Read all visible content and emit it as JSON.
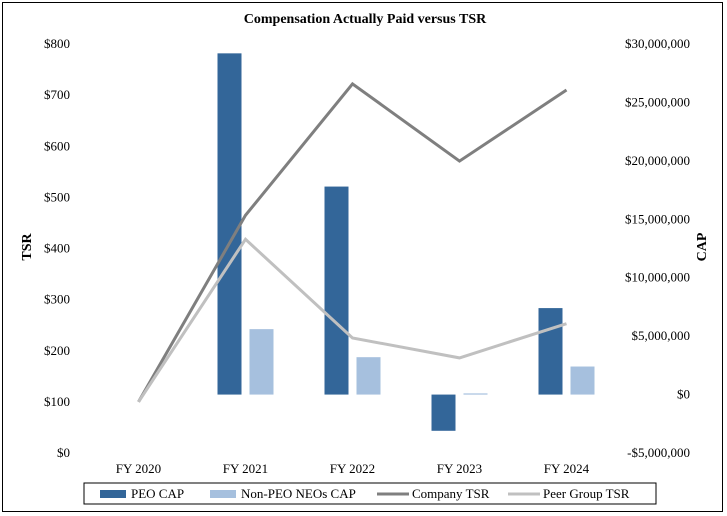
{
  "chart_data": {
    "type": "bar+line",
    "title": "Compensation Actually Paid versus TSR",
    "categories": [
      "FY 2020",
      "FY 2021",
      "FY 2022",
      "FY 2023",
      "FY 2024"
    ],
    "left_axis": {
      "label": "TSR",
      "range": [
        0,
        800
      ],
      "ticks": [
        0,
        100,
        200,
        300,
        400,
        500,
        600,
        700,
        800
      ],
      "tick_labels": [
        "$0",
        "$100",
        "$200",
        "$300",
        "$400",
        "$500",
        "$600",
        "$700",
        "$800"
      ]
    },
    "right_axis": {
      "label": "CAP",
      "range": [
        -5000000,
        30000000
      ],
      "ticks": [
        -5000000,
        0,
        5000000,
        10000000,
        15000000,
        20000000,
        25000000,
        30000000
      ],
      "tick_labels": [
        "-$5,000,000",
        "$0",
        "$5,000,000",
        "$10,000,000",
        "$15,000,000",
        "$20,000,000",
        "$25,000,000",
        "$30,000,000"
      ]
    },
    "bar_series": [
      {
        "name": "PEO CAP",
        "color": "#336699",
        "axis": "right",
        "values": [
          0,
          29200000,
          17800000,
          -3100000,
          7400000
        ]
      },
      {
        "name": "Non-PEO NEOs CAP",
        "color": "#a6c0de",
        "axis": "right",
        "values": [
          0,
          5600000,
          3200000,
          100000,
          2400000
        ]
      }
    ],
    "line_series": [
      {
        "name": "Company TSR",
        "color": "#7f7f7f",
        "axis": "left",
        "values": [
          100,
          465,
          722,
          571,
          710
        ]
      },
      {
        "name": "Peer Group TSR",
        "color": "#c0c0c0",
        "axis": "left",
        "values": [
          100,
          418,
          225,
          186,
          253
        ]
      }
    ],
    "legend_position": "bottom",
    "legend": [
      "PEO CAP",
      "Non-PEO NEOs CAP",
      "Company TSR",
      "Peer Group TSR"
    ],
    "grid": false
  }
}
